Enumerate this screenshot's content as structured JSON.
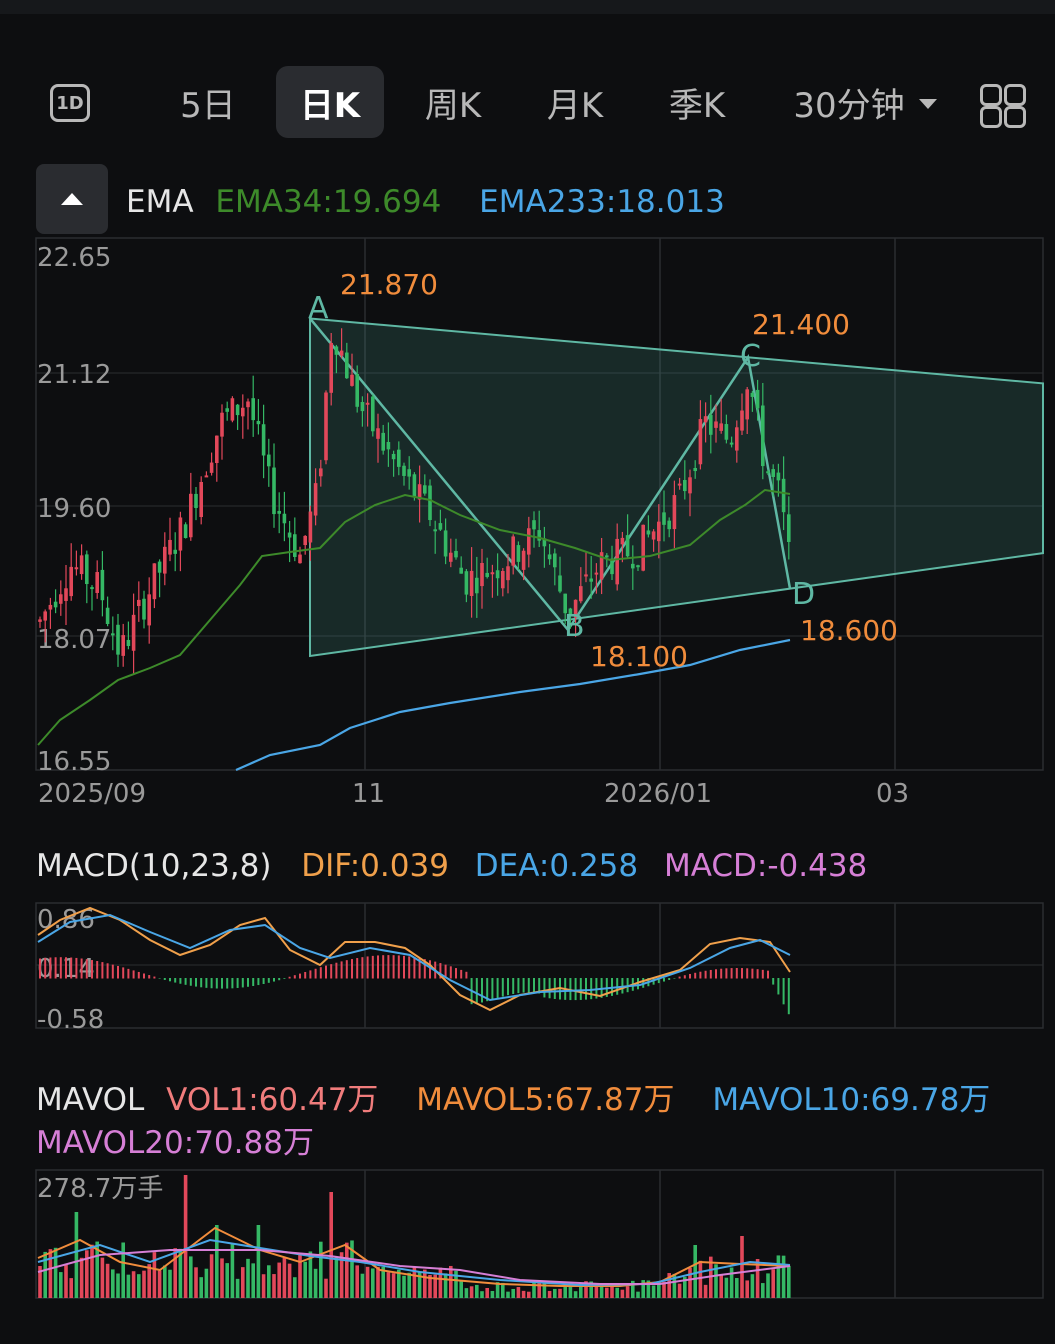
{
  "toolbar": {
    "icon_1d": "1D",
    "tabs": [
      "5日",
      "日K",
      "周K",
      "月K",
      "季K",
      "30分钟"
    ],
    "active_tab": "日K"
  },
  "ema_legend": {
    "name": "EMA",
    "ema34": "EMA34:19.694",
    "ema233": "EMA233:18.013"
  },
  "macd_legend": {
    "name": "MACD(10,23,8)",
    "dif": "DIF:0.039",
    "dea": "DEA:0.258",
    "macd": "MACD:-0.438"
  },
  "vol_legend": {
    "name": "MAVOL",
    "vol1": "VOL1:60.47万",
    "mavol5": "MAVOL5:67.87万",
    "mavol10": "MAVOL10:69.78万",
    "mavol20": "MAVOL20:70.88万"
  },
  "colors": {
    "up": "#e2485a",
    "down": "#35b865",
    "ema34": "#3d8a2a",
    "ema233": "#4aa6e6",
    "pattern": "#5fb8a4",
    "label": "#f08c3c",
    "dif": "#f0a04b",
    "dea": "#4aa6e6",
    "macd": "#d67fd6",
    "vol1": "#f07c7c",
    "mavol5": "#f08c3c",
    "mavol10": "#4aa6e6",
    "mavol20": "#d67fd6"
  },
  "chart_data": [
    {
      "type": "candlestick",
      "title": "EMA",
      "y_ticks": [
        "22.65",
        "21.12",
        "19.60",
        "18.07",
        "16.55"
      ],
      "ylim": [
        16.55,
        22.65
      ],
      "x_ticks": [
        "2025/09",
        "11",
        "2026/01",
        "03"
      ],
      "series": [
        {
          "name": "EMA34",
          "last": 19.694
        },
        {
          "name": "EMA233",
          "last": 18.013
        }
      ],
      "pattern": [
        {
          "point": "A",
          "value": 21.87,
          "label": "21.870"
        },
        {
          "point": "B",
          "value": 18.1,
          "label": "18.100"
        },
        {
          "point": "C",
          "value": 21.4,
          "label": "21.400"
        },
        {
          "point": "D",
          "value": 18.6,
          "label": "18.600"
        }
      ],
      "pattern_points": [
        "A",
        "B",
        "C",
        "D"
      ],
      "pattern_labels": [
        "21.870",
        "18.100",
        "21.400",
        "18.600"
      ]
    },
    {
      "type": "line",
      "title": "MACD(10,23,8)",
      "y_ticks": [
        "0.86",
        "0.14",
        "-0.58"
      ],
      "ylim": [
        -0.58,
        0.86
      ],
      "series": [
        {
          "name": "DIF",
          "last": 0.039
        },
        {
          "name": "DEA",
          "last": 0.258
        },
        {
          "name": "MACD",
          "last": -0.438
        }
      ]
    },
    {
      "type": "bar",
      "title": "MAVOL",
      "y_ticks": [
        "278.7万手"
      ],
      "series": [
        {
          "name": "VOL1",
          "last": "60.47万"
        },
        {
          "name": "MAVOL5",
          "last": "67.87万"
        },
        {
          "name": "MAVOL10",
          "last": "69.78万"
        },
        {
          "name": "MAVOL20",
          "last": "70.88万"
        }
      ]
    }
  ]
}
